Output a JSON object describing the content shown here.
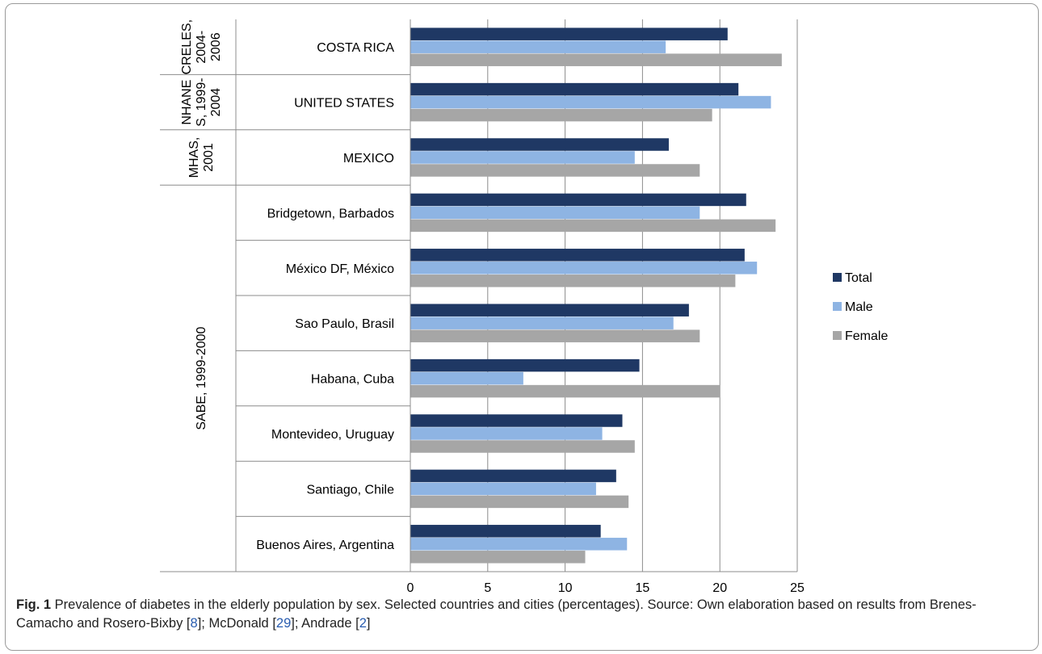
{
  "chart_data": {
    "type": "bar",
    "orientation": "horizontal",
    "categories": [
      "COSTA RICA",
      "UNITED STATES",
      "MEXICO",
      "Bridgetown, Barbados",
      "México DF, México",
      "Sao Paulo, Brasil",
      "Habana, Cuba",
      "Montevideo, Uruguay",
      "Santiago, Chile",
      "Buenos Aires, Argentina"
    ],
    "groups": [
      {
        "label_lines": [
          "CRELES,",
          "2004-",
          "2006"
        ],
        "categories": [
          "COSTA RICA"
        ]
      },
      {
        "label_lines": [
          "NHANE",
          "S, 1999-",
          "2004"
        ],
        "categories": [
          "UNITED STATES"
        ]
      },
      {
        "label_lines": [
          "MHAS,",
          "2001"
        ],
        "categories": [
          "MEXICO"
        ]
      },
      {
        "label_lines": [
          "SABE, 1999-2000"
        ],
        "categories": [
          "Bridgetown, Barbados",
          "México DF, México",
          "Sao Paulo, Brasil",
          "Habana, Cuba",
          "Montevideo, Uruguay",
          "Santiago, Chile",
          "Buenos Aires, Argentina"
        ]
      }
    ],
    "series": [
      {
        "name": "Total",
        "color": "#1f3864",
        "values": [
          20.5,
          21.2,
          16.7,
          21.7,
          21.6,
          18.0,
          14.8,
          13.7,
          13.3,
          12.3
        ]
      },
      {
        "name": "Male",
        "color": "#8eb4e3",
        "values": [
          16.5,
          23.3,
          14.5,
          18.7,
          22.4,
          17.0,
          7.3,
          12.4,
          12.0,
          14.0
        ]
      },
      {
        "name": "Female",
        "color": "#a6a6a6",
        "values": [
          24.0,
          19.5,
          18.7,
          23.6,
          21.0,
          18.7,
          20.0,
          14.5,
          14.1,
          11.3
        ]
      }
    ],
    "xlim": [
      0,
      25
    ],
    "xticks": [
      0,
      5,
      10,
      15,
      20,
      25
    ],
    "grid": true,
    "legend_position": "right"
  },
  "caption": {
    "label": "Fig. 1",
    "parts": [
      {
        "text": " Prevalence of diabetes in the elderly population by sex. Selected countries and cities (percentages). Source: Own elaboration based on results from Brenes-Camacho and Rosero-Bixby [",
        "ref": false
      },
      {
        "text": "8",
        "ref": true
      },
      {
        "text": "]; McDonald [",
        "ref": false
      },
      {
        "text": "29",
        "ref": true
      },
      {
        "text": "]; Andrade [",
        "ref": false
      },
      {
        "text": "2",
        "ref": true
      },
      {
        "text": "]",
        "ref": false
      }
    ]
  }
}
